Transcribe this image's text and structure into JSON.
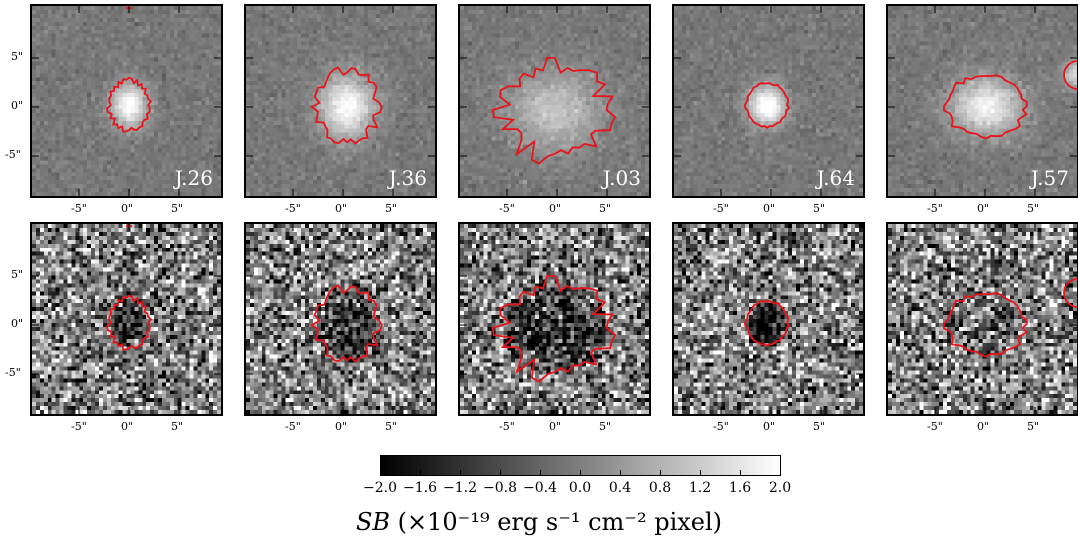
{
  "figure": {
    "top_row_labels": [
      "J.26",
      "J.36",
      "J.03",
      "J.64",
      "J.57"
    ],
    "axis_tick_labels": [
      "-5\"",
      "0\"",
      "5\""
    ],
    "colorbar": {
      "ticks": [
        "−2.0",
        "−1.6",
        "−1.2",
        "−0.8",
        "−0.4",
        "0.0",
        "0.4",
        "0.8",
        "1.2",
        "1.6",
        "2.0"
      ],
      "range": [
        -2.0,
        2.0
      ],
      "colormap": "gray",
      "label_math": "SB",
      "label_text": "(×10⁻¹⁹ erg s⁻¹ cm⁻² pixel)"
    },
    "contour_color": "#e8141b"
  }
}
